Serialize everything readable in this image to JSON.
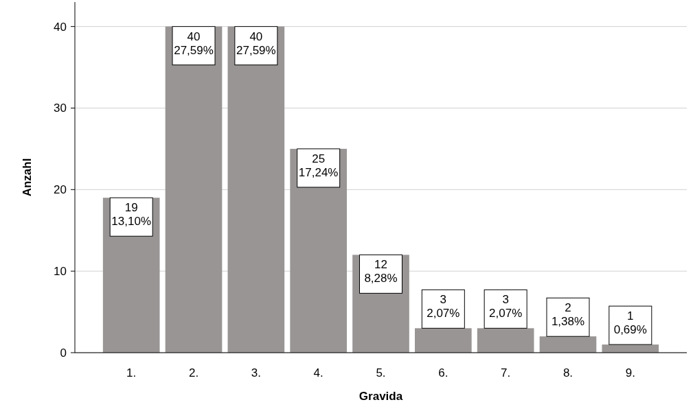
{
  "chart_data": {
    "type": "bar",
    "xlabel": "Gravida",
    "ylabel": "Anzahl",
    "categories": [
      "1.",
      "2.",
      "3.",
      "4.",
      "5.",
      "6.",
      "7.",
      "8.",
      "9."
    ],
    "values": [
      19,
      40,
      40,
      25,
      12,
      3,
      3,
      2,
      1
    ],
    "value_labels": [
      "19\n13,10%",
      "40\n27,59%",
      "40\n27,59%",
      "25\n17,24%",
      "12\n8,28%",
      "3\n2,07%",
      "3\n2,07%",
      "2\n1,38%",
      "1\n0,69%"
    ],
    "color": "#999595",
    "ylim": [
      0,
      43
    ],
    "yticks": [
      0,
      10,
      20,
      30,
      40
    ],
    "grid": "y"
  }
}
